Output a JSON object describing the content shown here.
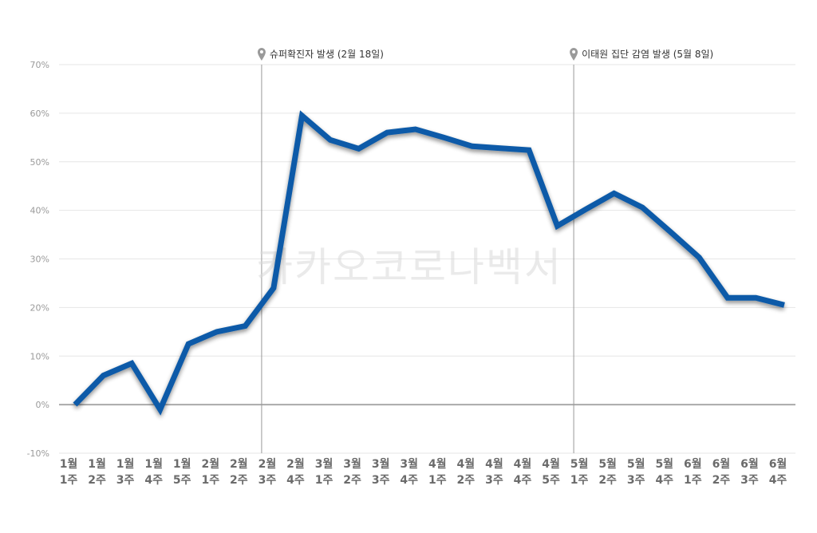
{
  "chart_data": {
    "type": "line",
    "title": "",
    "xlabel": "",
    "ylabel": "",
    "ylim": [
      -10,
      70
    ],
    "yticks": [
      70,
      60,
      50,
      40,
      30,
      20,
      10,
      0,
      -10
    ],
    "ytick_labels": [
      "70%",
      "60%",
      "50%",
      "40%",
      "30%",
      "20%",
      "10%",
      "0%",
      "-10%"
    ],
    "grid": true,
    "categories": [
      [
        "1월",
        "1주"
      ],
      [
        "1월",
        "2주"
      ],
      [
        "1월",
        "3주"
      ],
      [
        "1월",
        "4주"
      ],
      [
        "1월",
        "5주"
      ],
      [
        "2월",
        "1주"
      ],
      [
        "2월",
        "2주"
      ],
      [
        "2월",
        "3주"
      ],
      [
        "2월",
        "4주"
      ],
      [
        "3월",
        "1주"
      ],
      [
        "3월",
        "2주"
      ],
      [
        "3월",
        "3주"
      ],
      [
        "3월",
        "4주"
      ],
      [
        "4월",
        "1주"
      ],
      [
        "4월",
        "2주"
      ],
      [
        "4월",
        "3주"
      ],
      [
        "4월",
        "4주"
      ],
      [
        "4월",
        "5주"
      ],
      [
        "5월",
        "1주"
      ],
      [
        "5월",
        "2주"
      ],
      [
        "5월",
        "3주"
      ],
      [
        "5월",
        "4주"
      ],
      [
        "6월",
        "1주"
      ],
      [
        "6월",
        "2주"
      ],
      [
        "6월",
        "3주"
      ],
      [
        "6월",
        "4주"
      ]
    ],
    "series": [
      {
        "values": [
          0,
          6,
          8.5,
          -1,
          12.5,
          15,
          16.2,
          24,
          59.5,
          54.5,
          52.7,
          56,
          56.7,
          55,
          53.2,
          52.8,
          52.4,
          36.8,
          40.2,
          43.5,
          40.6,
          35.5,
          30.3,
          22,
          22,
          20.5
        ],
        "color": "#0a5aa8"
      }
    ],
    "annotations": [
      {
        "category_index": 7,
        "text": "슈퍼확진자 발생 (2월 18일)"
      },
      {
        "category_index": 18,
        "text": "이태원 집단 감염 발생 (5월 8일)"
      }
    ],
    "watermark": "카카오코로나백서",
    "colors": {
      "line": "#0a5aa8",
      "grid": "#e6e6e6",
      "zero_line": "#aaaaaa",
      "annotation_line": "#999999",
      "pin": "#9a9a9a"
    }
  }
}
